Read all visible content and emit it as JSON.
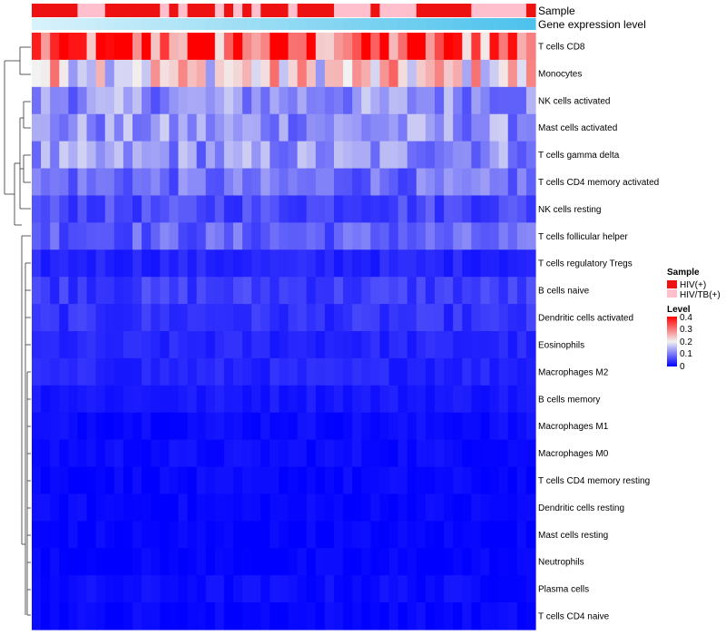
{
  "chart_data": {
    "type": "heatmap",
    "title": "",
    "n_columns": 55,
    "rows": [
      "T cells CD8",
      "Monocytes",
      "NK cells activated",
      "Mast cells activated",
      "T cells gamma delta",
      "T cells CD4 memory activated",
      "NK cells resting",
      "T cells follicular helper",
      "T cells regulatory  Tregs",
      "B cells naive",
      "Dendritic cells activated",
      "Eosinophils",
      "Macrophages M2",
      "B cells memory",
      "Macrophages M1",
      "Macrophages M0",
      "T cells CD4 memory resting",
      "Dendritic cells resting",
      "Mast cells resting",
      "Neutrophils",
      "Plasma cells",
      "T cells CD4 naive"
    ],
    "row_mean_level": [
      0.33,
      0.22,
      0.12,
      0.12,
      0.12,
      0.09,
      0.06,
      0.08,
      0.03,
      0.05,
      0.04,
      0.03,
      0.03,
      0.02,
      0.01,
      0.01,
      0.005,
      0.005,
      0.003,
      0.002,
      0.01,
      0.005
    ],
    "annotations": {
      "sample": {
        "label": "Sample",
        "pattern": [
          "HIV(+)",
          "HIV(+)",
          "HIV(+)",
          "HIV(+)",
          "HIV(+)",
          "HIV/TB(+)",
          "HIV/TB(+)",
          "HIV/TB(+)",
          "HIV(+)",
          "HIV(+)",
          "HIV(+)",
          "HIV(+)",
          "HIV(+)",
          "HIV(+)",
          "HIV/TB(+)",
          "HIV(+)",
          "HIV/TB(+)",
          "HIV(+)",
          "HIV(+)",
          "HIV(+)",
          "HIV/TB(+)",
          "HIV(+)",
          "HIV/TB(+)",
          "HIV(+)",
          "HIV/TB(+)",
          "HIV(+)",
          "HIV(+)",
          "HIV(+)",
          "HIV/TB(+)",
          "HIV(+)",
          "HIV(+)",
          "HIV(+)",
          "HIV(+)",
          "HIV/TB(+)",
          "HIV/TB(+)",
          "HIV/TB(+)",
          "HIV/TB(+)",
          "HIV(+)",
          "HIV/TB(+)",
          "HIV/TB(+)",
          "HIV/TB(+)",
          "HIV/TB(+)",
          "HIV(+)",
          "HIV(+)",
          "HIV(+)",
          "HIV(+)",
          "HIV(+)",
          "HIV(+)",
          "HIV/TB(+)",
          "HIV/TB(+)",
          "HIV/TB(+)",
          "HIV/TB(+)",
          "HIV/TB(+)",
          "HIV/TB(+)",
          "HIV(+)"
        ]
      },
      "gene_expression": {
        "label": "Gene expression level",
        "trend": "light to sky-blue gradient, increasing left to right"
      }
    },
    "legend": {
      "sample_title": "Sample",
      "sample_entries": [
        {
          "label": "HIV(+)",
          "color": "#ee1111"
        },
        {
          "label": "HIV/TB(+)",
          "color": "#ffbfcc"
        }
      ],
      "level_title": "Level",
      "level_ticks": [
        "0.4",
        "0.3",
        "0.2",
        "0.1",
        "0"
      ],
      "level_range": [
        0,
        0.4
      ],
      "placement": "right"
    },
    "colors": {
      "low": "#0000ff",
      "mid": "#f2f2f2",
      "high": "#ff0000",
      "hiv": "#ee1111",
      "hivtb": "#ffbfcc",
      "gene_low": "#d8f2fb",
      "gene_high": "#4dc2ec"
    }
  }
}
